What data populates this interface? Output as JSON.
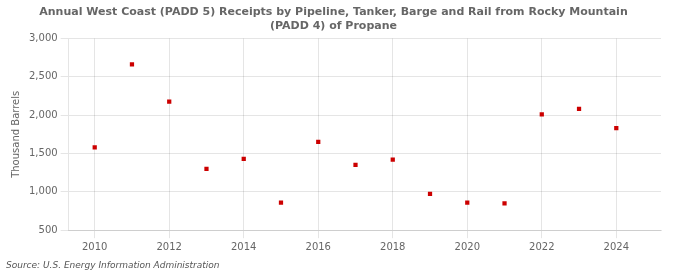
{
  "chart_data": {
    "type": "scatter",
    "title": "Annual West Coast (PADD 5) Receipts by Pipeline, Tanker, Barge and Rail from Rocky Mountain\n(PADD 4) of Propane",
    "ylabel": "Thousand Barrels",
    "source": "Source: U.S. Energy Information Administration",
    "x": [
      2010,
      2011,
      2012,
      2013,
      2014,
      2015,
      2016,
      2017,
      2018,
      2019,
      2020,
      2021,
      2022,
      2023,
      2024
    ],
    "values": [
      1580,
      2660,
      2175,
      1300,
      1430,
      860,
      1650,
      1350,
      1420,
      975,
      860,
      850,
      2010,
      2080,
      1830
    ],
    "color": "#cc0000",
    "marker": "square",
    "xlim": [
      2009.3,
      2025.2
    ],
    "ylim": [
      500,
      3000
    ],
    "xticks": [
      2010,
      2012,
      2014,
      2016,
      2018,
      2020,
      2022,
      2024
    ],
    "yticks": [
      500,
      {
        "value": 1000,
        "label": "1,000"
      },
      {
        "value": 1500,
        "label": "1,500"
      },
      {
        "value": 2000,
        "label": "2,000"
      },
      {
        "value": 2500,
        "label": "2,500"
      },
      {
        "value": 3000,
        "label": "3,000"
      }
    ],
    "grid": true
  }
}
